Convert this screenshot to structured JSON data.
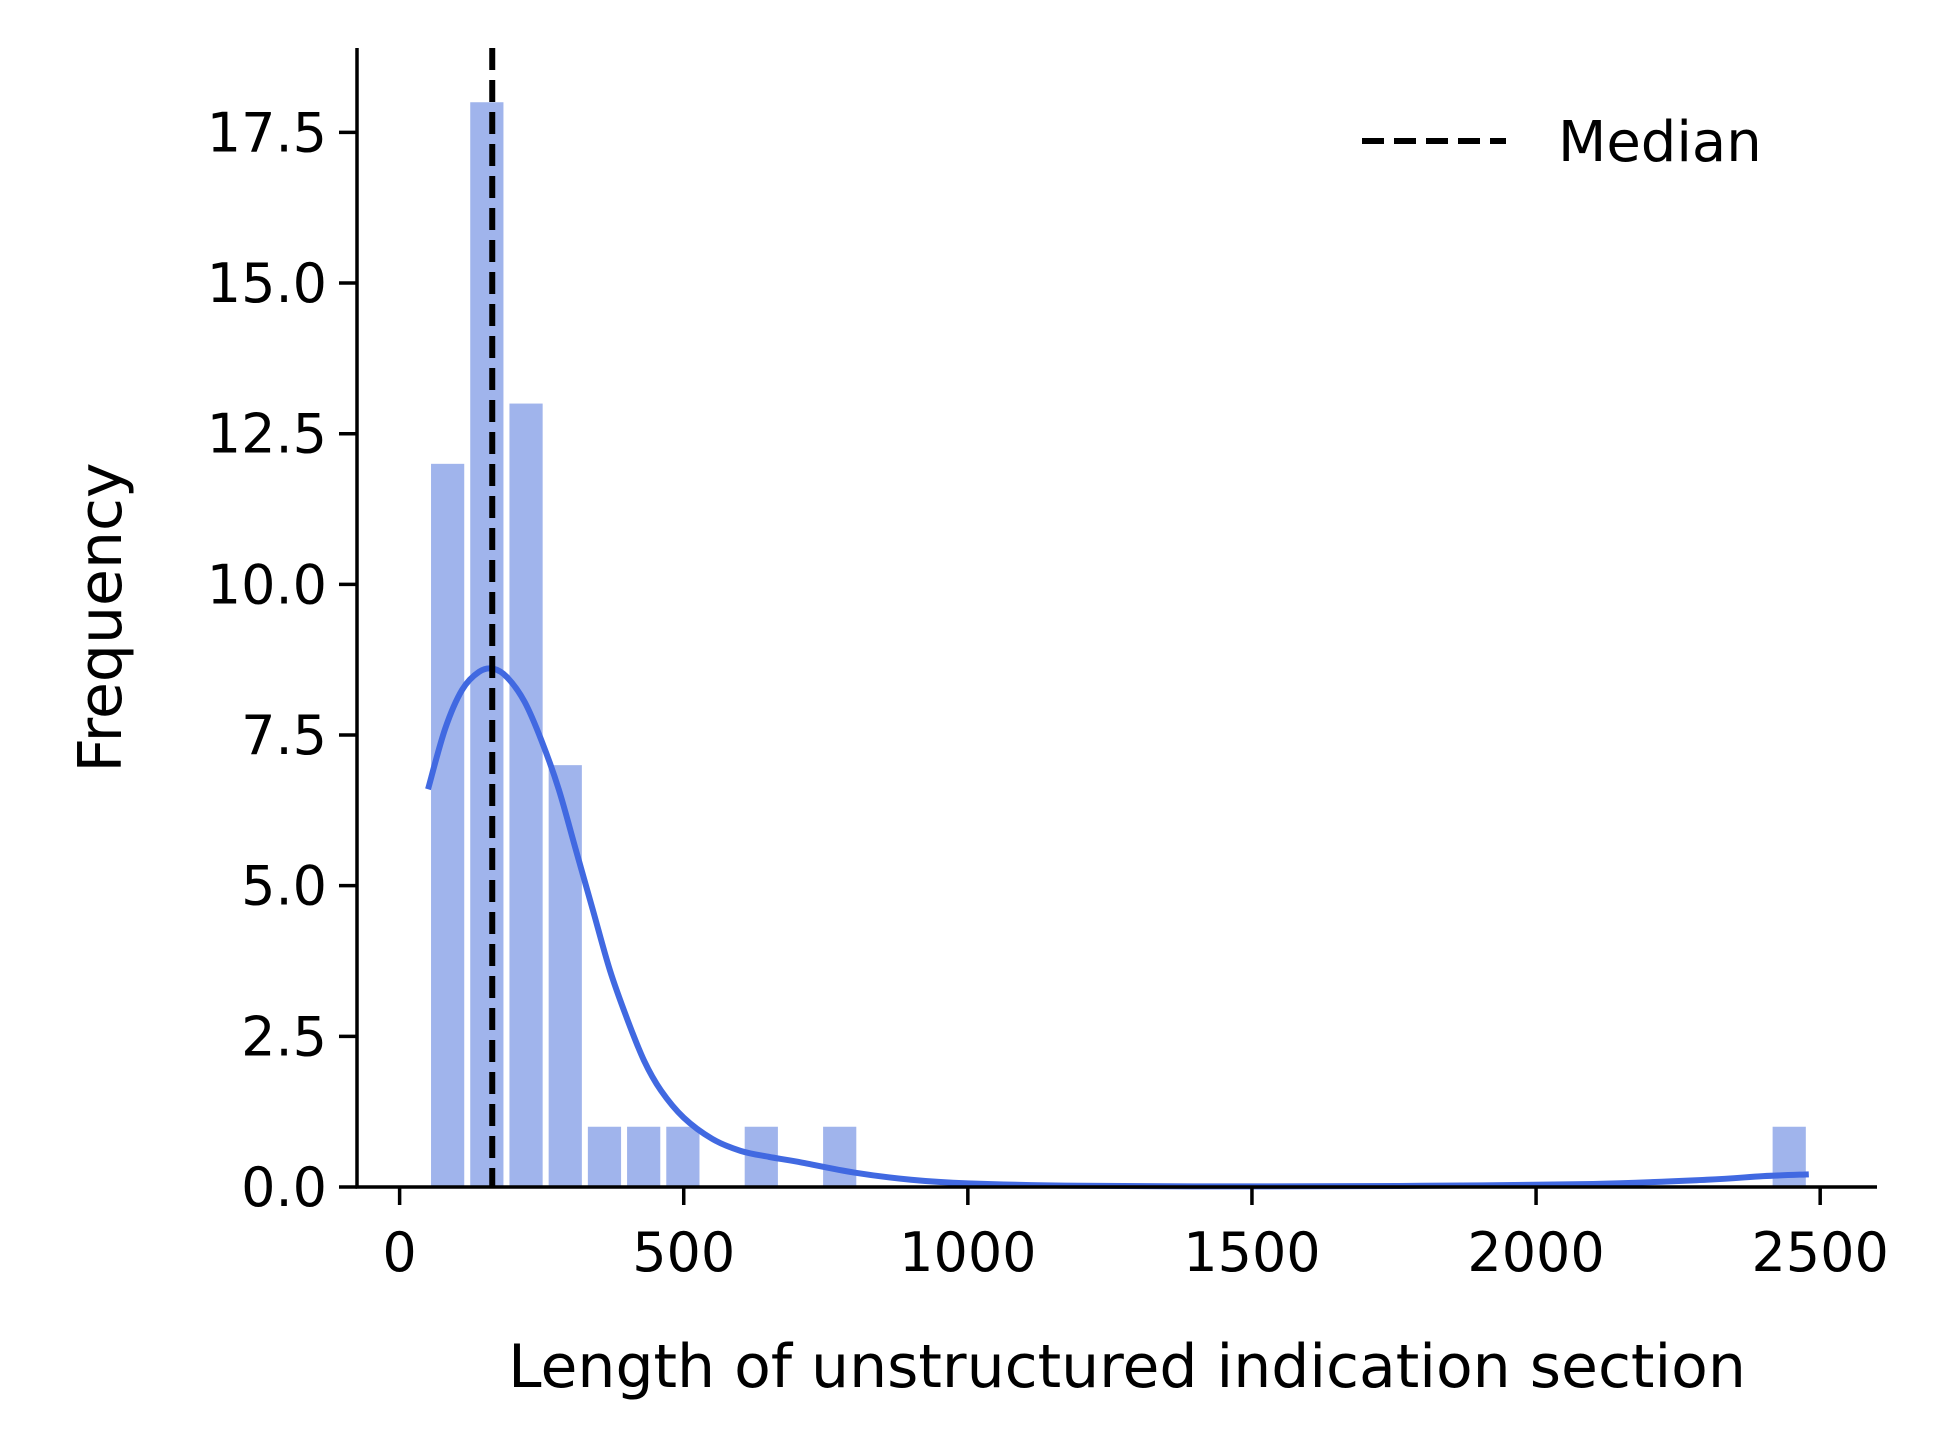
{
  "chart_data": {
    "type": "bar",
    "title": "",
    "xlabel": "Length of unstructured indication section",
    "ylabel": "Frequency",
    "xlim": [
      -75,
      2600
    ],
    "ylim": [
      0,
      18.9
    ],
    "x_ticks": [
      0,
      500,
      1000,
      1500,
      2000,
      2500
    ],
    "x_tick_labels": [
      "0",
      "500",
      "1000",
      "1500",
      "2000",
      "2500"
    ],
    "y_ticks": [
      0,
      2.5,
      5,
      7.5,
      10,
      12.5,
      15,
      17.5
    ],
    "y_tick_labels": [
      "0.0",
      "2.5",
      "5.0",
      "7.5",
      "10.0",
      "12.5",
      "15.0",
      "17.5"
    ],
    "bin_width": 69,
    "bins": [
      {
        "start": 50,
        "count": 12
      },
      {
        "start": 119,
        "count": 18
      },
      {
        "start": 188,
        "count": 13
      },
      {
        "start": 257,
        "count": 7
      },
      {
        "start": 326,
        "count": 1
      },
      {
        "start": 395,
        "count": 1
      },
      {
        "start": 464,
        "count": 1
      },
      {
        "start": 602,
        "count": 1
      },
      {
        "start": 740,
        "count": 1
      },
      {
        "start": 2411,
        "count": 1
      }
    ],
    "kde": {
      "x": [
        50,
        80,
        110,
        140,
        165,
        190,
        220,
        250,
        280,
        310,
        340,
        370,
        400,
        430,
        460,
        500,
        550,
        600,
        650,
        700,
        800,
        900,
        1000,
        1200,
        1500,
        1800,
        2100,
        2300,
        2400,
        2480
      ],
      "y": [
        6.6,
        7.6,
        8.25,
        8.55,
        8.6,
        8.45,
        8.05,
        7.4,
        6.6,
        5.6,
        4.6,
        3.6,
        2.8,
        2.1,
        1.6,
        1.15,
        0.8,
        0.6,
        0.5,
        0.42,
        0.24,
        0.12,
        0.06,
        0.02,
        0.01,
        0.02,
        0.05,
        0.12,
        0.18,
        0.21
      ]
    },
    "median": 163,
    "legend": {
      "label": "Median",
      "position": "top-right"
    },
    "colors": {
      "bars": "#a0b4ec",
      "kde": "#4169e1",
      "median": "#000000",
      "axes": "#000000"
    },
    "grid": false
  }
}
